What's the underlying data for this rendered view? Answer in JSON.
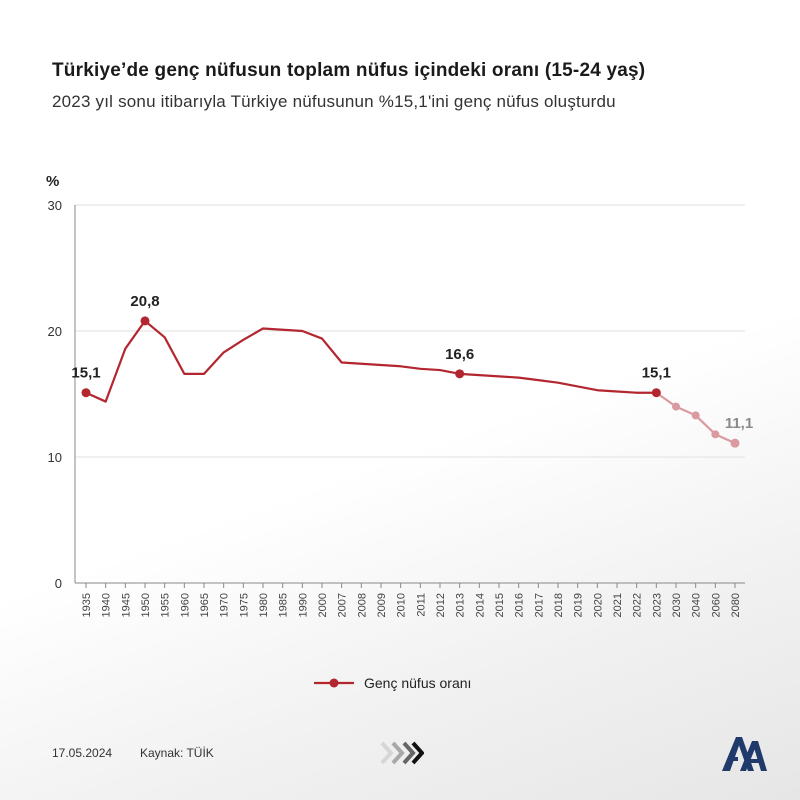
{
  "title": "Türkiye’de genç nüfusun toplam nüfus içindeki oranı (15-24 yaş)",
  "subtitle": "2023 yıl sonu itibarıyla Türkiye nüfusunun %15,1'ini genç nüfus oluşturdu",
  "footer": {
    "date": "17.05.2024",
    "source": "Kaynak: TÜİK"
  },
  "colors": {
    "line": "#b3262f",
    "projection": "#d99aa0",
    "grid": "#e2e2e2",
    "axis": "#888888"
  },
  "icons": {
    "arrows": "triple-chevron-right-icon",
    "logo": "aa-logo-icon"
  },
  "chart_data": {
    "type": "line",
    "title": "",
    "xlabel": "",
    "ylabel": "%",
    "ylim": [
      0,
      30
    ],
    "yticks": [
      0,
      10,
      20,
      30
    ],
    "grid": true,
    "legend_position": "bottom-center",
    "categories": [
      "1935",
      "1940",
      "1945",
      "1950",
      "1955",
      "1960",
      "1965",
      "1970",
      "1975",
      "1980",
      "1985",
      "1990",
      "2000",
      "2007",
      "2008",
      "2009",
      "2010",
      "2011",
      "2012",
      "2013",
      "2014",
      "2015",
      "2016",
      "2017",
      "2018",
      "2019",
      "2020",
      "2021",
      "2022",
      "2023",
      "2030",
      "2040",
      "2060",
      "2080"
    ],
    "series": [
      {
        "name": "Genç nüfus oranı",
        "values": [
          15.1,
          14.4,
          18.6,
          20.8,
          19.5,
          16.6,
          16.6,
          18.3,
          19.3,
          20.2,
          20.1,
          20.0,
          19.4,
          17.5,
          17.4,
          17.3,
          17.2,
          17.0,
          16.9,
          16.6,
          16.5,
          16.4,
          16.3,
          16.1,
          15.9,
          15.6,
          15.3,
          15.2,
          15.1,
          15.1,
          14.0,
          13.3,
          11.8,
          11.1
        ],
        "projection_from_index": 29
      }
    ],
    "annotations": [
      {
        "index": 0,
        "label": "15,1"
      },
      {
        "index": 3,
        "label": "20,8"
      },
      {
        "index": 19,
        "label": "16,6"
      },
      {
        "index": 29,
        "label": "15,1"
      },
      {
        "index": 33,
        "label": "11,1"
      }
    ]
  }
}
